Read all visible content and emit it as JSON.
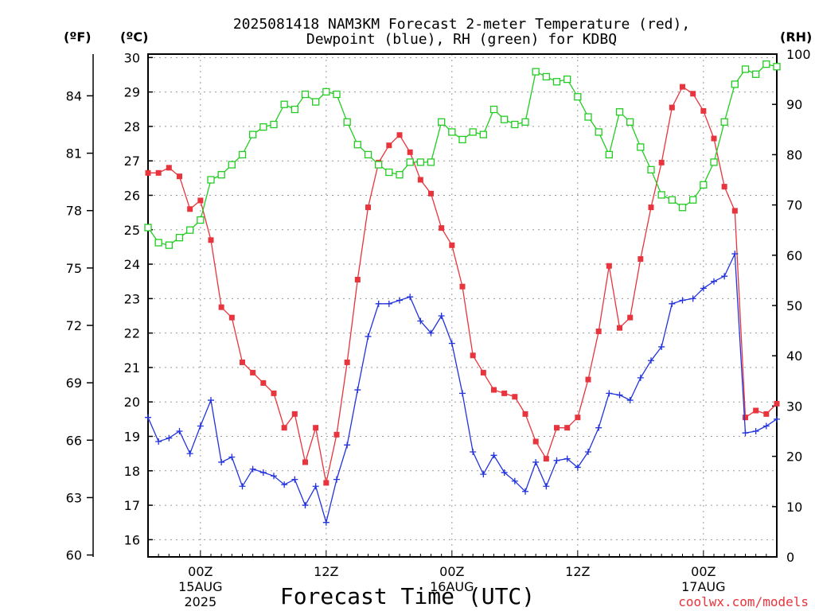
{
  "chart_data": {
    "type": "line",
    "title_line1": "2025081418 NAM3KM Forecast 2-meter Temperature (red),",
    "title_line2": "Dewpoint (blue), RH (green) for KDBQ",
    "xlabel": "Forecast Time (UTC)",
    "watermark": "coolwx.com/models",
    "unit_labels": {
      "f": "(ºF)",
      "c": "(ºC)",
      "rh": "(RH)"
    },
    "colors": {
      "temperature": "#e8343c",
      "dewpoint": "#2233dd",
      "rh": "#22cc22",
      "grid": "#999999"
    },
    "grid": true,
    "x_range_hours": [
      19,
      79
    ],
    "y_celsius_range": [
      15.5,
      30.1
    ],
    "y_fahrenheit_range": [
      59.9,
      86.18
    ],
    "y_rh_range": [
      0,
      100
    ],
    "x_ticks": [
      {
        "hour": 24,
        "line1": "00Z",
        "line2": "15AUG",
        "line3": "2025"
      },
      {
        "hour": 36,
        "line1": "12Z",
        "line2": "",
        "line3": ""
      },
      {
        "hour": 48,
        "line1": "00Z",
        "line2": "16AUG",
        "line3": ""
      },
      {
        "hour": 60,
        "line1": "12Z",
        "line2": "",
        "line3": ""
      },
      {
        "hour": 72,
        "line1": "00Z",
        "line2": "17AUG",
        "line3": ""
      }
    ],
    "celsius_ticks": [
      "16",
      "17",
      "18",
      "19",
      "20",
      "21",
      "22",
      "23",
      "24",
      "25",
      "26",
      "27",
      "28",
      "29",
      "30"
    ],
    "fahrenheit_ticks": [
      "60",
      "63",
      "66",
      "69",
      "72",
      "75",
      "78",
      "81",
      "84"
    ],
    "rh_ticks": [
      "0",
      "10",
      "20",
      "30",
      "40",
      "50",
      "60",
      "70",
      "80",
      "90",
      "100"
    ],
    "hours": [
      19,
      20,
      21,
      22,
      23,
      24,
      25,
      26,
      27,
      28,
      29,
      30,
      31,
      32,
      33,
      34,
      35,
      36,
      37,
      38,
      39,
      40,
      41,
      42,
      43,
      44,
      45,
      46,
      47,
      48,
      49,
      50,
      51,
      52,
      53,
      54,
      55,
      56,
      57,
      58,
      59,
      60,
      61,
      62,
      63,
      64,
      65,
      66,
      67,
      68,
      69,
      70,
      71,
      72,
      73,
      74,
      75,
      76,
      77,
      78,
      79
    ],
    "series": [
      {
        "name": "Temperature",
        "key": "temperature",
        "unit": "C",
        "values": [
          26.65,
          26.65,
          26.8,
          26.55,
          25.6,
          25.85,
          24.7,
          22.75,
          22.45,
          21.15,
          20.85,
          20.55,
          20.25,
          19.25,
          19.65,
          18.25,
          19.25,
          17.65,
          19.05,
          21.15,
          23.55,
          25.65,
          26.95,
          27.45,
          27.75,
          27.25,
          26.45,
          26.05,
          25.05,
          24.55,
          23.35,
          21.35,
          20.85,
          20.35,
          20.25,
          20.15,
          19.65,
          18.85,
          18.35,
          19.25,
          19.25,
          19.55,
          20.65,
          22.05,
          23.95,
          22.15,
          22.45,
          24.15,
          25.65,
          26.95,
          28.55,
          29.15,
          28.95,
          28.45,
          27.65,
          26.25,
          25.55,
          19.55,
          19.75,
          19.65,
          19.95
        ]
      },
      {
        "name": "Dewpoint",
        "key": "dewpoint",
        "unit": "C",
        "values": [
          19.55,
          18.85,
          18.95,
          19.15,
          18.5,
          19.3,
          20.05,
          18.25,
          18.4,
          17.55,
          18.05,
          17.95,
          17.85,
          17.6,
          17.75,
          17.0,
          17.55,
          16.5,
          17.75,
          18.75,
          20.35,
          21.9,
          22.85,
          22.85,
          22.95,
          23.05,
          22.35,
          22.0,
          22.5,
          21.7,
          20.25,
          18.55,
          17.9,
          18.45,
          17.95,
          17.7,
          17.4,
          18.25,
          17.55,
          18.3,
          18.35,
          18.1,
          18.55,
          19.25,
          20.25,
          20.2,
          20.05,
          20.7,
          21.2,
          21.6,
          22.85,
          22.95,
          23.0,
          23.3,
          23.5,
          23.65,
          24.3,
          19.1,
          19.15,
          19.3,
          19.5
        ]
      },
      {
        "name": "RH",
        "key": "rh",
        "unit": "%",
        "values": [
          65.5,
          62.5,
          62,
          63.5,
          65,
          67,
          75,
          76,
          78,
          80,
          84,
          85.5,
          86,
          90,
          89,
          92,
          90.5,
          92.5,
          92,
          86.5,
          82,
          80,
          78,
          76.5,
          76,
          78.5,
          78.5,
          78.5,
          86.5,
          84.5,
          83,
          84.5,
          84,
          89,
          87,
          86,
          86.5,
          96.5,
          95.5,
          94.5,
          95,
          91.5,
          87.5,
          84.5,
          80,
          88.5,
          86.5,
          81.5,
          77,
          72,
          71,
          69.5,
          71,
          74,
          78.5,
          86.5,
          94,
          97,
          96,
          98,
          97.5
        ]
      }
    ]
  }
}
